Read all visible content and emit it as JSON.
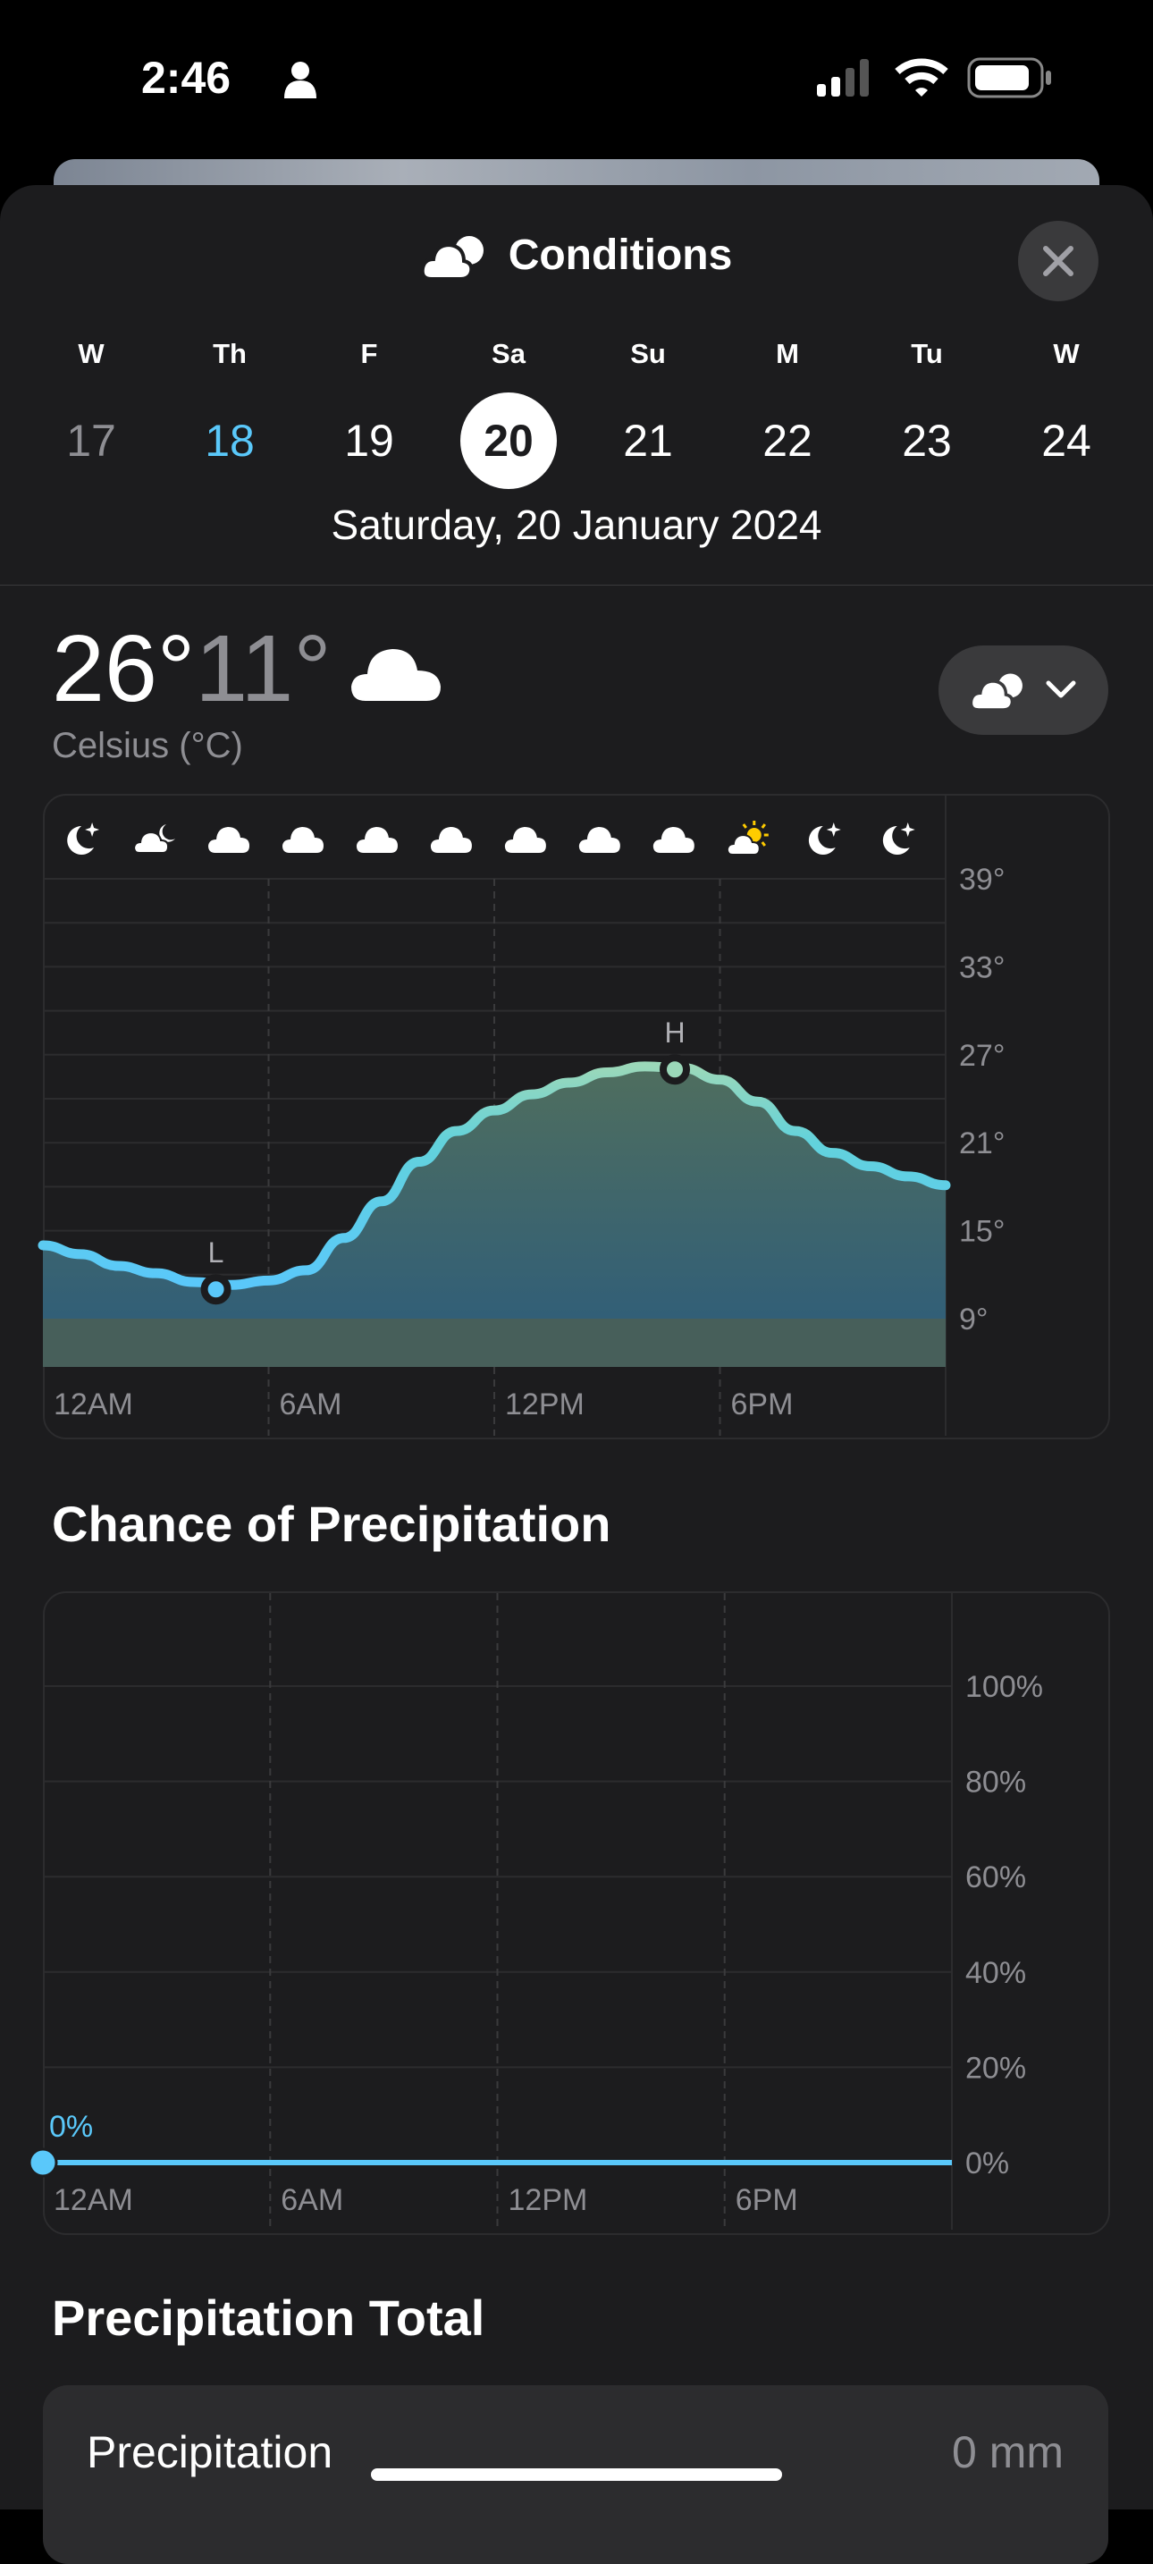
{
  "status_bar": {
    "time": "2:46",
    "icons": [
      "person-icon",
      "cellular-signal-icon",
      "wifi-icon",
      "battery-icon"
    ]
  },
  "header": {
    "title": "Conditions",
    "icon": "cloud-icon",
    "close_icon": "close-icon"
  },
  "days": [
    {
      "letter": "W",
      "number": "17",
      "state": "past"
    },
    {
      "letter": "Th",
      "number": "18",
      "state": "today"
    },
    {
      "letter": "F",
      "number": "19",
      "state": "normal"
    },
    {
      "letter": "Sa",
      "number": "20",
      "state": "selected"
    },
    {
      "letter": "Su",
      "number": "21",
      "state": "normal"
    },
    {
      "letter": "M",
      "number": "22",
      "state": "normal"
    },
    {
      "letter": "Tu",
      "number": "23",
      "state": "normal"
    },
    {
      "letter": "W",
      "number": "24",
      "state": "normal"
    }
  ],
  "selected_date": "Saturday, 20 January 2024",
  "summary": {
    "high": "26°",
    "low": "11°",
    "condition_icon": "cloud-icon",
    "unit": "Celsius (°C)",
    "dropdown_icon": "cloud-icon"
  },
  "colors": {
    "accent": "#5ac8fa",
    "today": "#5ac8fa",
    "high_line": "#9bd8b9",
    "background": "#1c1c1e"
  },
  "chart_data": [
    {
      "type": "area",
      "x_ticks": [
        "12AM",
        "6AM",
        "12PM",
        "6PM"
      ],
      "y_ticks": [
        "39°",
        "33°",
        "27°",
        "21°",
        "15°",
        "9°"
      ],
      "ylim": [
        6,
        39
      ],
      "x": [
        0,
        1,
        2,
        3,
        4,
        5,
        6,
        7,
        8,
        9,
        10,
        11,
        12,
        13,
        14,
        15,
        16,
        17,
        18,
        19,
        20,
        21,
        22,
        23,
        24
      ],
      "values": [
        14,
        13.4,
        12.6,
        12.1,
        11.5,
        11.3,
        11.6,
        12.3,
        14.5,
        17,
        19.7,
        21.8,
        23.2,
        24.3,
        25.1,
        25.8,
        26.2,
        26.1,
        25.3,
        23.8,
        21.8,
        20.3,
        19.4,
        18.7,
        18.1
      ],
      "low": {
        "label": "L",
        "hour": 4.6,
        "value": 11
      },
      "high": {
        "label": "H",
        "hour": 16.8,
        "value": 26
      },
      "hourly_icons": [
        "moon-stars-icon",
        "cloud-moon-icon",
        "cloud-icon",
        "cloud-icon",
        "cloud-icon",
        "cloud-icon",
        "cloud-icon",
        "cloud-icon",
        "cloud-icon",
        "cloud-sun-icon",
        "moon-stars-icon",
        "moon-stars-icon"
      ],
      "grid": true
    },
    {
      "type": "line",
      "title": "Chance of Precipitation",
      "x_ticks": [
        "12AM",
        "6AM",
        "12PM",
        "6PM"
      ],
      "y_ticks": [
        "100%",
        "80%",
        "60%",
        "40%",
        "20%",
        "0%"
      ],
      "ylim": [
        0,
        100
      ],
      "x": [
        0,
        24
      ],
      "values": [
        0,
        0
      ],
      "current_label": "0%",
      "grid": true
    }
  ],
  "precipitation_total": {
    "title": "Precipitation Total",
    "label": "Precipitation",
    "value": "0 mm"
  }
}
